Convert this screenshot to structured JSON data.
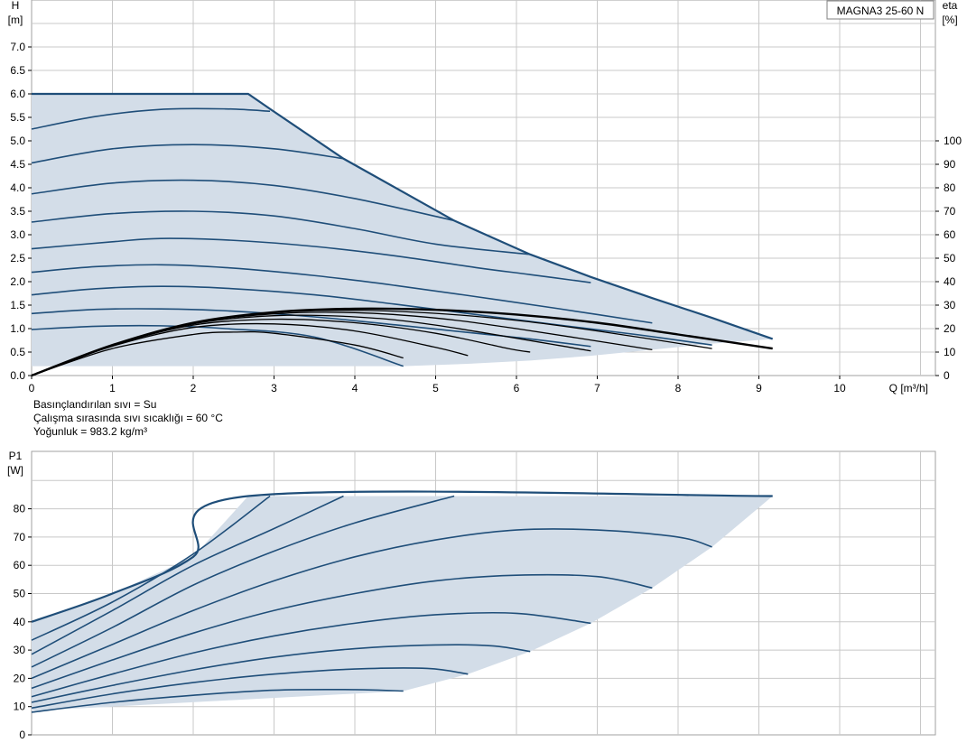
{
  "chart_data": [
    {
      "type": "line",
      "name": "head",
      "title": "MAGNA3 25-60 N",
      "y_axis_label": "H",
      "y_axis_unit": "[m]",
      "y2_axis_label": "eta",
      "y2_axis_unit": "[%]",
      "x_axis_label": "Q [m³/h]",
      "xlim": [
        0,
        11
      ],
      "ylim": [
        0,
        7.5
      ],
      "y2lim": [
        0,
        100
      ],
      "x_ticks": [
        "0",
        "1",
        "2",
        "3",
        "4",
        "5",
        "6",
        "7",
        "8",
        "9",
        "10"
      ],
      "y_ticks": [
        "0.0",
        "0.5",
        "1.0",
        "1.5",
        "2.0",
        "2.5",
        "3.0",
        "3.5",
        "4.0",
        "4.5",
        "5.0",
        "5.5",
        "6.0",
        "6.5",
        "7.0"
      ],
      "y2_ticks": [
        "0",
        "10",
        "20",
        "30",
        "40",
        "50",
        "60",
        "70",
        "80",
        "90",
        "100"
      ],
      "grid": true,
      "colors": {
        "curve": "#1f4e79",
        "area": "#d3dde8",
        "eta": "#000000",
        "grid": "#c8c8c8"
      },
      "envelope": [
        [
          0,
          6.0
        ],
        [
          2.68,
          6.0
        ],
        [
          2.95,
          5.68
        ],
        [
          3.86,
          4.62
        ],
        [
          5.23,
          3.3
        ],
        [
          6.17,
          2.58
        ],
        [
          6.92,
          2.1
        ],
        [
          7.68,
          1.65
        ],
        [
          8.42,
          1.23
        ],
        [
          9.17,
          0.78
        ],
        [
          8.42,
          0.68
        ],
        [
          7.68,
          0.55
        ],
        [
          6.92,
          0.42
        ],
        [
          6.17,
          0.32
        ],
        [
          5.4,
          0.25
        ],
        [
          4.6,
          0.2
        ],
        [
          0,
          0.2
        ]
      ],
      "series": [
        {
          "points": [
            [
              0,
              6.0
            ],
            [
              2.68,
              6.0
            ],
            [
              2.95,
              5.68
            ],
            [
              3.86,
              4.62
            ],
            [
              5.23,
              3.3
            ],
            [
              6.17,
              2.58
            ],
            [
              6.92,
              2.1
            ],
            [
              7.68,
              1.65
            ],
            [
              8.42,
              1.23
            ],
            [
              9.17,
              0.78
            ]
          ]
        },
        {
          "points": [
            [
              0,
              5.25
            ],
            [
              0.8,
              5.52
            ],
            [
              1.6,
              5.67
            ],
            [
              2.4,
              5.68
            ],
            [
              2.95,
              5.63
            ]
          ]
        },
        {
          "points": [
            [
              0,
              4.53
            ],
            [
              1,
              4.83
            ],
            [
              2,
              4.92
            ],
            [
              3,
              4.83
            ],
            [
              3.86,
              4.62
            ]
          ]
        },
        {
          "points": [
            [
              0,
              3.87
            ],
            [
              1,
              4.1
            ],
            [
              2,
              4.16
            ],
            [
              3,
              4.05
            ],
            [
              4,
              3.77
            ],
            [
              5.23,
              3.3
            ]
          ]
        },
        {
          "points": [
            [
              0,
              3.27
            ],
            [
              1,
              3.45
            ],
            [
              2,
              3.5
            ],
            [
              3,
              3.4
            ],
            [
              4,
              3.13
            ],
            [
              5,
              2.8
            ],
            [
              6.17,
              2.58
            ]
          ]
        },
        {
          "points": [
            [
              0,
              2.7
            ],
            [
              1,
              2.85
            ],
            [
              1.6,
              2.92
            ],
            [
              2.5,
              2.88
            ],
            [
              3.5,
              2.75
            ],
            [
              4.5,
              2.55
            ],
            [
              5.5,
              2.3
            ],
            [
              6.17,
              2.15
            ],
            [
              6.92,
              1.98
            ]
          ]
        },
        {
          "points": [
            [
              0,
              2.2
            ],
            [
              0.8,
              2.32
            ],
            [
              1.6,
              2.36
            ],
            [
              2.4,
              2.3
            ],
            [
              3.5,
              2.13
            ],
            [
              4.5,
              1.92
            ],
            [
              5.5,
              1.68
            ],
            [
              6.5,
              1.43
            ],
            [
              7.68,
              1.12
            ]
          ]
        },
        {
          "points": [
            [
              0,
              1.72
            ],
            [
              0.8,
              1.85
            ],
            [
              1.6,
              1.9
            ],
            [
              2.4,
              1.86
            ],
            [
              3.5,
              1.72
            ],
            [
              4.5,
              1.52
            ],
            [
              5.5,
              1.3
            ],
            [
              6.5,
              1.08
            ],
            [
              7.5,
              0.87
            ],
            [
              8.42,
              0.65
            ]
          ]
        },
        {
          "points": [
            [
              0,
              1.32
            ],
            [
              0.8,
              1.41
            ],
            [
              1.6,
              1.42
            ],
            [
              2.4,
              1.38
            ],
            [
              3.5,
              1.25
            ],
            [
              4.5,
              1.08
            ],
            [
              5.5,
              0.9
            ],
            [
              6.17,
              0.78
            ],
            [
              6.92,
              0.62
            ]
          ]
        },
        {
          "points": [
            [
              0,
              0.98
            ],
            [
              0.8,
              1.05
            ],
            [
              1.6,
              1.06
            ],
            [
              2.4,
              1.0
            ],
            [
              3.5,
              0.82
            ],
            [
              4.6,
              0.2
            ]
          ]
        }
      ],
      "eta_series": [
        {
          "points": [
            [
              0,
              0
            ],
            [
              1,
              13
            ],
            [
              2,
              22.5
            ],
            [
              3,
              27
            ],
            [
              4,
              28.5
            ],
            [
              5,
              28
            ],
            [
              6,
              26
            ],
            [
              7,
              22.5
            ],
            [
              8,
              17.5
            ],
            [
              9.17,
              11.5
            ]
          ]
        },
        {
          "points": [
            [
              0,
              0
            ],
            [
              1,
              13
            ],
            [
              2,
              22.5
            ],
            [
              3,
              26.8
            ],
            [
              4,
              27.8
            ],
            [
              5,
              26.5
            ],
            [
              6,
              23.5
            ],
            [
              7,
              19
            ],
            [
              8.42,
              11.5
            ]
          ]
        },
        {
          "points": [
            [
              0,
              0
            ],
            [
              1,
              13
            ],
            [
              2,
              22.3
            ],
            [
              3,
              26.3
            ],
            [
              4,
              26.8
            ],
            [
              5,
              24.5
            ],
            [
              6,
              20
            ],
            [
              7.68,
              11
            ]
          ]
        },
        {
          "points": [
            [
              0,
              0
            ],
            [
              1,
              13
            ],
            [
              2,
              22
            ],
            [
              3,
              25.5
            ],
            [
              4,
              25
            ],
            [
              5,
              21.5
            ],
            [
              6.92,
              10.5
            ]
          ]
        },
        {
          "points": [
            [
              0,
              0
            ],
            [
              1,
              12.8
            ],
            [
              2,
              21.5
            ],
            [
              3,
              24
            ],
            [
              4,
              22.5
            ],
            [
              5,
              18
            ],
            [
              5.9,
              11.5
            ],
            [
              6.17,
              10
            ]
          ]
        },
        {
          "points": [
            [
              0,
              0
            ],
            [
              1,
              12.5
            ],
            [
              2,
              20.5
            ],
            [
              3,
              22
            ],
            [
              4,
              19
            ],
            [
              5,
              12
            ],
            [
              5.4,
              8.5
            ]
          ]
        },
        {
          "points": [
            [
              0,
              0
            ],
            [
              1,
              11.5
            ],
            [
              2,
              17.5
            ],
            [
              2.5,
              18.5
            ],
            [
              3,
              18
            ],
            [
              4,
              13
            ],
            [
              4.6,
              7.5
            ]
          ]
        }
      ]
    },
    {
      "type": "line",
      "name": "power",
      "y_axis_label": "P1",
      "y_axis_unit": "[W]",
      "xlim": [
        0,
        11
      ],
      "ylim": [
        0,
        90
      ],
      "y_ticks": [
        "0",
        "10",
        "20",
        "30",
        "40",
        "50",
        "60",
        "70",
        "80"
      ],
      "grid": true,
      "envelope": [
        [
          0,
          40
        ],
        [
          1,
          50
        ],
        [
          2,
          63
        ],
        [
          2.68,
          84.5
        ],
        [
          9.17,
          84.5
        ],
        [
          8.42,
          66.5
        ],
        [
          7.68,
          52
        ],
        [
          6.92,
          39.5
        ],
        [
          6.17,
          29.5
        ],
        [
          5.4,
          21.5
        ],
        [
          4.6,
          15.5
        ],
        [
          0,
          8.5
        ]
      ],
      "series": [
        {
          "points": [
            [
              0,
              40
            ],
            [
              1,
              50
            ],
            [
              2,
              63
            ],
            [
              2.68,
              84.5
            ],
            [
              9.17,
              84.5
            ]
          ]
        },
        {
          "points": [
            [
              0,
              33.5
            ],
            [
              1,
              47
            ],
            [
              2,
              64
            ],
            [
              2.95,
              84.5
            ]
          ]
        },
        {
          "points": [
            [
              0,
              28.5
            ],
            [
              1,
              44
            ],
            [
              2,
              60
            ],
            [
              3,
              73
            ],
            [
              3.86,
              84.5
            ]
          ]
        },
        {
          "points": [
            [
              0,
              24
            ],
            [
              1,
              38
            ],
            [
              2,
              53
            ],
            [
              3,
              65
            ],
            [
              4,
              75
            ],
            [
              5.23,
              84.5
            ]
          ]
        },
        {
          "points": [
            [
              0,
              20
            ],
            [
              1,
              32
            ],
            [
              2,
              44
            ],
            [
              3,
              54.5
            ],
            [
              4,
              63
            ],
            [
              5,
              69
            ],
            [
              6,
              72.5
            ],
            [
              7,
              72.5
            ],
            [
              8,
              70
            ],
            [
              8.42,
              66.5
            ]
          ]
        },
        {
          "points": [
            [
              0,
              16.5
            ],
            [
              1,
              26.5
            ],
            [
              2,
              36
            ],
            [
              3,
              44
            ],
            [
              4,
              50
            ],
            [
              5,
              54.5
            ],
            [
              6,
              56.5
            ],
            [
              7,
              56
            ],
            [
              7.68,
              52
            ]
          ]
        },
        {
          "points": [
            [
              0,
              13.5
            ],
            [
              1,
              21.5
            ],
            [
              2,
              29
            ],
            [
              3,
              35
            ],
            [
              4,
              39.5
            ],
            [
              5,
              42.5
            ],
            [
              6,
              43
            ],
            [
              6.92,
              39.5
            ]
          ]
        },
        {
          "points": [
            [
              0,
              11.5
            ],
            [
              1,
              17.5
            ],
            [
              2,
              23
            ],
            [
              3,
              27.5
            ],
            [
              4,
              30.5
            ],
            [
              5,
              31.8
            ],
            [
              5.7,
              31.5
            ],
            [
              6.17,
              29.5
            ]
          ]
        },
        {
          "points": [
            [
              0,
              9.5
            ],
            [
              1,
              14.5
            ],
            [
              2,
              18.5
            ],
            [
              3,
              21.5
            ],
            [
              4,
              23.3
            ],
            [
              4.9,
              23.5
            ],
            [
              5.4,
              21.5
            ]
          ]
        },
        {
          "points": [
            [
              0,
              8
            ],
            [
              1,
              11.5
            ],
            [
              2,
              14
            ],
            [
              3,
              15.8
            ],
            [
              4,
              16
            ],
            [
              4.6,
              15.5
            ]
          ]
        }
      ]
    }
  ],
  "notes": {
    "fluid": "Basınçlandırılan sıvı = Su",
    "temperature": "Çalışma sırasında sıvı sıcaklığı = 60 °C",
    "density": "Yoğunluk = 983.2 kg/m³"
  }
}
